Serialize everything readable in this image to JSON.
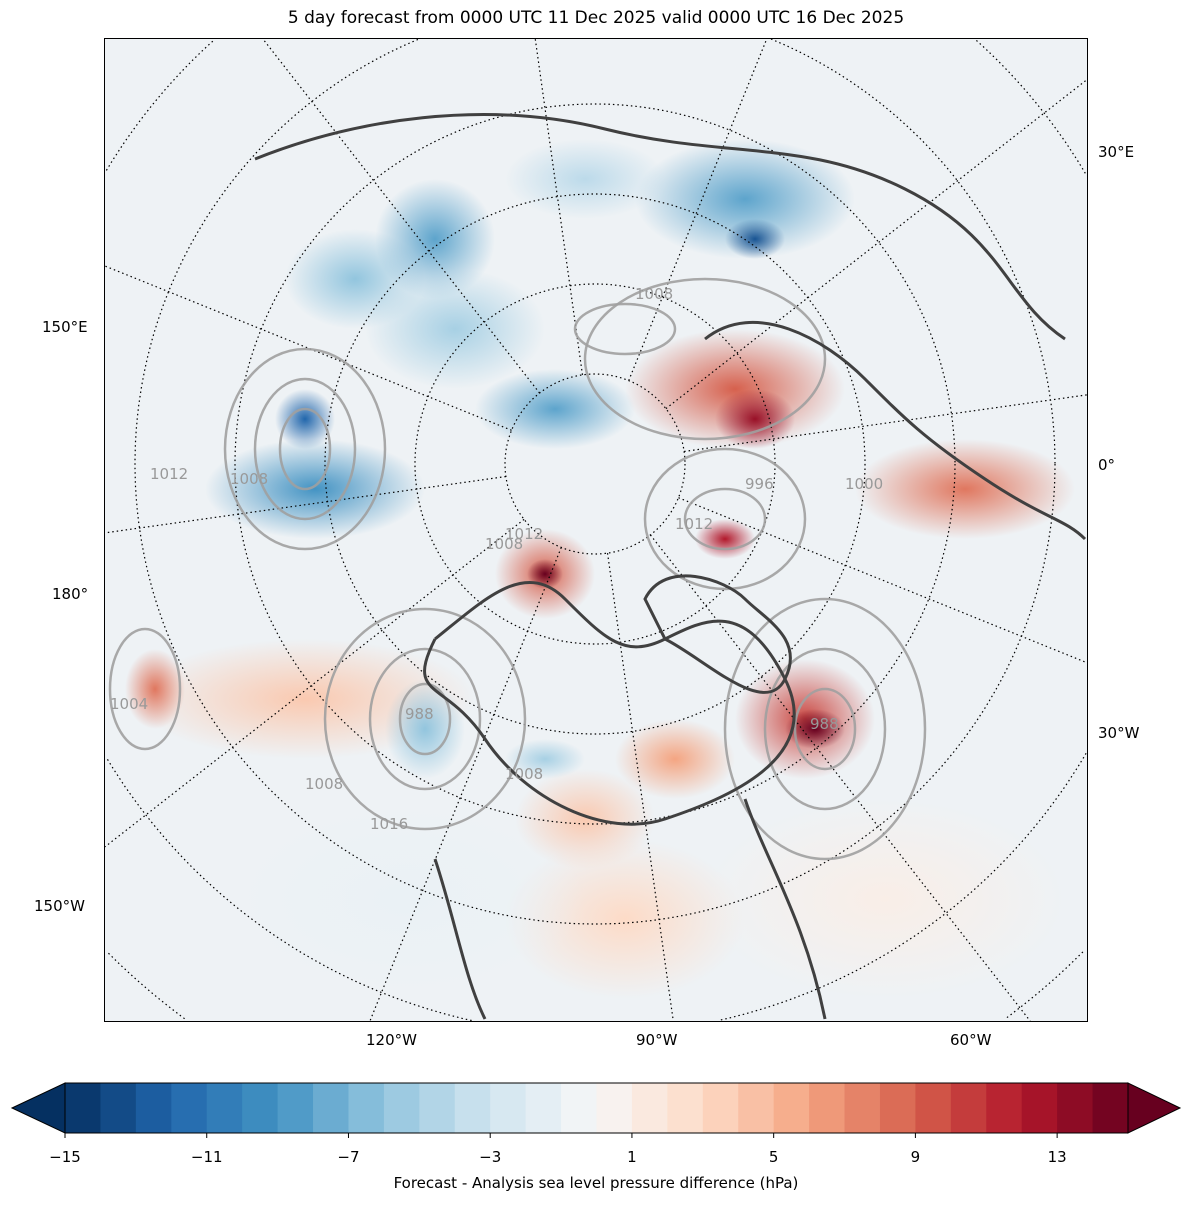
{
  "title": "5 day forecast from 0000 UTC 11 Dec 2025 valid 0000 UTC 16 Dec 2025",
  "map": {
    "projection": "north-polar-stereographic",
    "longitude_labels": {
      "lon_30E": "30°E",
      "lon_150E": "150°E",
      "lon_0": "0°",
      "lon_180": "180°",
      "lon_30W": "30°W",
      "lon_150W": "150°W",
      "lon_120W": "120°W",
      "lon_90W": "90°W",
      "lon_60W": "60°W"
    },
    "contour_labels": [
      "1012",
      "1008",
      "1004",
      "1016",
      "1008",
      "1012",
      "1008",
      "996",
      "1000",
      "988",
      "988",
      "1008",
      "1008",
      "1012"
    ],
    "contour_color": "#a0a0a0",
    "coastline_color": "#404040"
  },
  "colorbar": {
    "label": "Forecast - Analysis sea level pressure difference (hPa)",
    "min": -15,
    "max": 15,
    "step": 1,
    "extend": "both",
    "ticks": [
      "−15",
      "−11",
      "−7",
      "−3",
      "1",
      "5",
      "9",
      "13"
    ],
    "tick_values": [
      -15,
      -11,
      -7,
      -3,
      1,
      5,
      9,
      13
    ],
    "colormap": "RdBu_r",
    "anchor_colors": [
      "#053061",
      "#2166ac",
      "#4393c3",
      "#92c5de",
      "#d1e5f0",
      "#f7f7f7",
      "#fddbc7",
      "#f4a582",
      "#d6604d",
      "#b2182b",
      "#67001f"
    ]
  }
}
